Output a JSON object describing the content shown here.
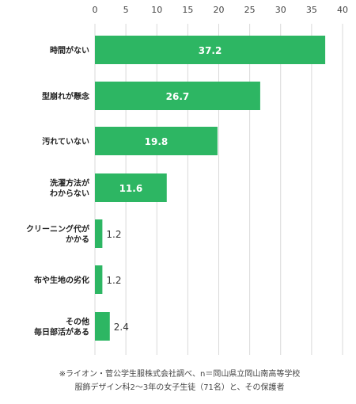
{
  "colors": {
    "bar": "#2db663",
    "grid": "#d9d9d9",
    "value_inside": "#ffffff",
    "value_outside": "#333333"
  },
  "chart_data": {
    "type": "bar",
    "orientation": "horizontal",
    "categories": [
      [
        "時間がない"
      ],
      [
        "型崩れが懸念"
      ],
      [
        "汚れていない"
      ],
      [
        "洗濯方法が",
        "わからない"
      ],
      [
        "クリーニング代が",
        "かかる"
      ],
      [
        "布や生地の劣化"
      ],
      [
        "その他",
        "毎日部活がある"
      ]
    ],
    "values": [
      37.2,
      26.7,
      19.8,
      11.6,
      1.2,
      1.2,
      2.4
    ],
    "value_labels": [
      "37.2",
      "26.7",
      "19.8",
      "11.6",
      "1.2",
      "1.2",
      "2.4"
    ],
    "xlim": [
      0,
      40
    ],
    "xticks": [
      0,
      5,
      10,
      15,
      20,
      25,
      30,
      35,
      40
    ],
    "grid": true,
    "title": "",
    "xlabel": "",
    "ylabel": ""
  },
  "source": {
    "lines": [
      "※ライオン・菅公学生服株式会社調べ、n＝岡山県立岡山南高等学校",
      "服飾デザイン科2〜3年の女子生徒（71名）と、その保護者"
    ]
  }
}
